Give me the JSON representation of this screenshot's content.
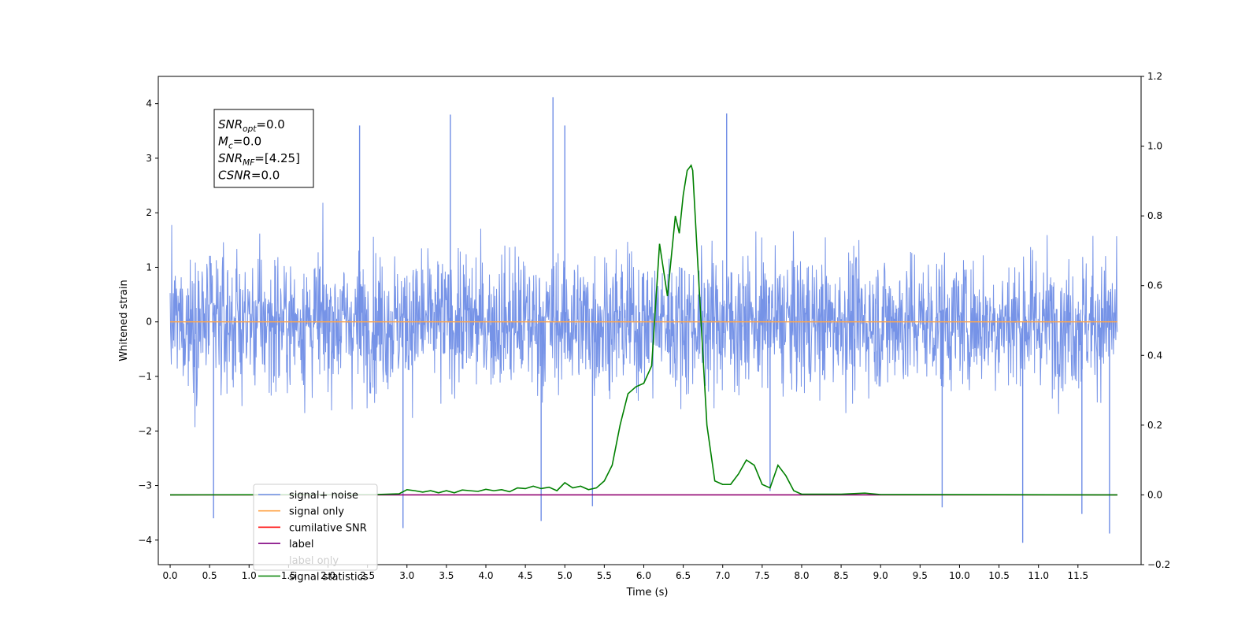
{
  "chart_data": {
    "type": "line",
    "title": "",
    "xlabel": "Time (s)",
    "ylabel": "Whitened strain",
    "xlim": [
      -0.15,
      12.3
    ],
    "ylim": [
      -4.45,
      4.5
    ],
    "y2lim": [
      -0.2,
      1.2
    ],
    "x_ticks": [
      0.0,
      0.5,
      1.0,
      1.5,
      2.0,
      2.5,
      3.0,
      3.5,
      4.0,
      4.5,
      5.0,
      5.5,
      6.0,
      6.5,
      7.0,
      7.5,
      8.0,
      8.5,
      9.0,
      9.5,
      10.0,
      10.5,
      11.0,
      11.5
    ],
    "x_tick_labels": [
      "0.0",
      "0.5",
      "1.0",
      "1.5",
      "2.0",
      "2.5",
      "3.0",
      "3.5",
      "4.0",
      "4.5",
      "5.0",
      "5.5",
      "6.0",
      "6.5",
      "7.0",
      "7.5",
      "8.0",
      "8.5",
      "9.0",
      "9.5",
      "10.0",
      "10.5",
      "11.0",
      "11.5"
    ],
    "y_ticks": [
      -4,
      -3,
      -2,
      -1,
      0,
      1,
      2,
      3,
      4
    ],
    "y_tick_labels": [
      "−4",
      "−3",
      "−2",
      "−1",
      "0",
      "1",
      "2",
      "3",
      "4"
    ],
    "y2_ticks": [
      -0.2,
      0.0,
      0.2,
      0.4,
      0.6,
      0.8,
      1.0,
      1.2
    ],
    "y2_tick_labels": [
      "−0.2",
      "0.0",
      "0.2",
      "0.4",
      "0.6",
      "0.8",
      "1.0",
      "1.2"
    ],
    "grid": false,
    "legend_position": "lower-left",
    "annotation": {
      "lines": [
        {
          "main": "SNR",
          "sub": "opt",
          "rest": "=0.0"
        },
        {
          "main": "M",
          "sub": "c",
          "rest": "=0.0"
        },
        {
          "main": "SNR",
          "sub": "MF",
          "rest": "=[4.25]"
        },
        {
          "main": "CSNR",
          "sub": "",
          "rest": "=0.0"
        }
      ]
    },
    "series": [
      {
        "name": "signal+ noise",
        "axis": "left",
        "color": "#6f8de6",
        "style": "noise",
        "x_range": [
          0.0,
          12.0
        ],
        "typical_envelope": [
          -2.0,
          2.0
        ],
        "peaks": [
          {
            "x": 0.55,
            "y": -3.6
          },
          {
            "x": 2.4,
            "y": 3.6
          },
          {
            "x": 2.95,
            "y": -3.78
          },
          {
            "x": 3.55,
            "y": 3.8
          },
          {
            "x": 4.7,
            "y": -3.65
          },
          {
            "x": 4.85,
            "y": 4.12
          },
          {
            "x": 5.0,
            "y": 3.6
          },
          {
            "x": 5.35,
            "y": -3.38
          },
          {
            "x": 7.05,
            "y": 3.82
          },
          {
            "x": 7.6,
            "y": -3.1
          },
          {
            "x": 9.78,
            "y": -3.4
          },
          {
            "x": 10.8,
            "y": -4.05
          },
          {
            "x": 11.55,
            "y": -3.52
          },
          {
            "x": 11.9,
            "y": -3.88
          }
        ]
      },
      {
        "name": "signal only",
        "axis": "left",
        "color": "#ffa54a",
        "x": [
          0.0,
          12.0
        ],
        "y": [
          0.0,
          0.0
        ]
      },
      {
        "name": "cumilative SNR",
        "axis": "right",
        "color": "#ff0000",
        "x": [
          0.0,
          12.0
        ],
        "y": [
          0.0,
          0.0
        ]
      },
      {
        "name": "label",
        "axis": "right",
        "color": "#800080",
        "x": [
          0.0,
          12.0
        ],
        "y": [
          0.0,
          0.0
        ]
      },
      {
        "name": "label only",
        "axis": "right",
        "color": "#ffffff",
        "hidden": true
      },
      {
        "name": "signal statistics",
        "axis": "right",
        "color": "#008000",
        "x": [
          0.0,
          2.6,
          2.9,
          3.0,
          3.1,
          3.2,
          3.3,
          3.4,
          3.5,
          3.6,
          3.7,
          3.8,
          3.9,
          4.0,
          4.1,
          4.2,
          4.3,
          4.4,
          4.5,
          4.6,
          4.7,
          4.8,
          4.9,
          5.0,
          5.1,
          5.2,
          5.3,
          5.4,
          5.5,
          5.6,
          5.7,
          5.8,
          5.9,
          6.0,
          6.1,
          6.2,
          6.3,
          6.4,
          6.45,
          6.5,
          6.55,
          6.6,
          6.62,
          6.7,
          6.8,
          6.9,
          7.0,
          7.1,
          7.2,
          7.3,
          7.4,
          7.5,
          7.6,
          7.7,
          7.8,
          7.9,
          8.0,
          8.5,
          8.8,
          9.0,
          12.0
        ],
        "y": [
          0.0,
          0.001,
          0.003,
          0.015,
          0.012,
          0.008,
          0.012,
          0.006,
          0.012,
          0.006,
          0.014,
          0.012,
          0.01,
          0.016,
          0.012,
          0.015,
          0.009,
          0.02,
          0.018,
          0.025,
          0.018,
          0.022,
          0.012,
          0.035,
          0.02,
          0.025,
          0.015,
          0.02,
          0.04,
          0.085,
          0.2,
          0.29,
          0.31,
          0.32,
          0.37,
          0.72,
          0.57,
          0.8,
          0.75,
          0.86,
          0.93,
          0.945,
          0.93,
          0.6,
          0.2,
          0.04,
          0.03,
          0.03,
          0.06,
          0.1,
          0.085,
          0.03,
          0.02,
          0.085,
          0.055,
          0.012,
          0.002,
          0.002,
          0.005,
          0.001,
          0.0
        ]
      }
    ]
  }
}
